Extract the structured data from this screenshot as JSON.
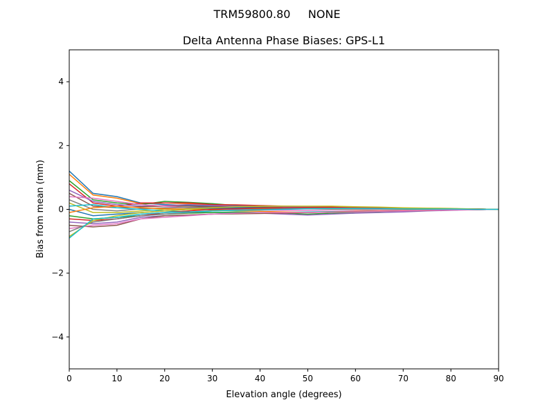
{
  "chart_data": {
    "type": "line",
    "suptitle": "TRM59800.80     NONE",
    "title": "Delta Antenna Phase Biases: GPS-L1",
    "xlabel": "Elevation angle (degrees)",
    "ylabel": "Bias from mean (mm)",
    "xlim": [
      0,
      90
    ],
    "ylim": [
      -5,
      5
    ],
    "xticks": [
      0,
      10,
      20,
      30,
      40,
      50,
      60,
      70,
      80,
      90
    ],
    "yticks": [
      -4,
      -2,
      0,
      2,
      4
    ],
    "ytick_labels": [
      "−4",
      "−2",
      "0",
      "2",
      "4"
    ],
    "grid": false,
    "colors": [
      "#1f77b4",
      "#ff7f0e",
      "#2ca02c",
      "#d62728",
      "#9467bd",
      "#8c564b",
      "#e377c2",
      "#7f7f7f",
      "#bcbd22",
      "#17becf"
    ],
    "x": [
      0,
      5,
      10,
      15,
      20,
      25,
      30,
      35,
      40,
      45,
      50,
      55,
      60,
      65,
      70,
      75,
      80,
      85,
      90
    ],
    "series": [
      {
        "values": [
          1.2,
          0.5,
          0.4,
          0.2,
          0.15,
          0.12,
          0.1,
          0.08,
          0.06,
          0.05,
          0.04,
          0.04,
          0.03,
          0.03,
          0.02,
          0.02,
          0.01,
          0.01,
          0
        ]
      },
      {
        "values": [
          1.1,
          0.45,
          0.35,
          0.18,
          0.2,
          0.18,
          0.14,
          0.1,
          0.08,
          0.07,
          0.06,
          0.05,
          0.04,
          0.03,
          0.03,
          0.02,
          0.02,
          0.01,
          0
        ]
      },
      {
        "values": [
          0.9,
          0.3,
          0.2,
          0.15,
          0.25,
          0.22,
          0.18,
          0.12,
          0.1,
          0.08,
          0.06,
          0.05,
          0.05,
          0.04,
          0.03,
          0.03,
          0.02,
          0.01,
          0
        ]
      },
      {
        "values": [
          0.8,
          0.2,
          0.1,
          0.2,
          0.2,
          0.2,
          0.15,
          0.14,
          0.12,
          0.1,
          0.09,
          0.08,
          0.06,
          0.05,
          0.04,
          0.03,
          0.02,
          0.01,
          0
        ]
      },
      {
        "values": [
          0.6,
          0.25,
          0.15,
          0.1,
          0.12,
          0.15,
          0.12,
          0.1,
          0.1,
          0.08,
          0.07,
          0.06,
          0.05,
          0.04,
          0.03,
          0.02,
          0.02,
          0.01,
          0
        ]
      },
      {
        "values": [
          0.5,
          0.1,
          0.05,
          0.08,
          0.1,
          0.1,
          0.08,
          0.07,
          0.06,
          0.05,
          0.05,
          0.04,
          0.03,
          0.03,
          0.02,
          0.02,
          0.01,
          0.01,
          0
        ]
      },
      {
        "values": [
          0.4,
          0.35,
          0.25,
          0.15,
          0.1,
          0.05,
          0.02,
          0,
          -0.02,
          -0.03,
          -0.03,
          -0.02,
          -0.02,
          -0.01,
          -0.01,
          0,
          0,
          0,
          0
        ]
      },
      {
        "values": [
          0.3,
          0.0,
          -0.05,
          0.02,
          0.05,
          0.06,
          0.06,
          0.05,
          0.05,
          0.04,
          0.03,
          0.03,
          0.02,
          0.02,
          0.01,
          0.01,
          0.01,
          0,
          0
        ]
      },
      {
        "values": [
          0.2,
          -0.1,
          -0.1,
          -0.05,
          0,
          0.02,
          0.03,
          0.03,
          0.02,
          0.02,
          0.02,
          0.01,
          0.01,
          0.01,
          0.01,
          0,
          0,
          0,
          0
        ]
      },
      {
        "values": [
          0.1,
          0.15,
          0.05,
          0,
          -0.05,
          -0.08,
          -0.1,
          -0.1,
          -0.1,
          -0.09,
          -0.08,
          -0.07,
          -0.06,
          -0.05,
          -0.04,
          -0.03,
          -0.02,
          -0.01,
          0
        ]
      },
      {
        "values": [
          0.0,
          -0.2,
          -0.15,
          -0.1,
          -0.05,
          0,
          0.03,
          0.05,
          0.05,
          0.04,
          0.04,
          0.03,
          0.03,
          0.02,
          0.02,
          0.01,
          0.01,
          0,
          0
        ]
      },
      {
        "values": [
          -0.1,
          0.05,
          0.1,
          0.05,
          0.02,
          0,
          -0.02,
          -0.04,
          -0.06,
          -0.08,
          -0.1,
          -0.08,
          -0.06,
          -0.05,
          -0.04,
          -0.03,
          -0.02,
          -0.01,
          0
        ]
      },
      {
        "values": [
          -0.2,
          -0.3,
          -0.25,
          -0.2,
          -0.15,
          -0.12,
          -0.1,
          -0.08,
          -0.1,
          -0.12,
          -0.15,
          -0.12,
          -0.1,
          -0.07,
          -0.05,
          -0.04,
          -0.02,
          -0.01,
          0
        ]
      },
      {
        "values": [
          -0.3,
          -0.35,
          -0.3,
          -0.2,
          -0.1,
          -0.05,
          0,
          0.02,
          0.04,
          0.05,
          0.06,
          0.06,
          0.05,
          0.04,
          0.03,
          0.02,
          0.02,
          0.01,
          0
        ]
      },
      {
        "values": [
          -0.4,
          -0.45,
          -0.4,
          -0.25,
          -0.2,
          -0.18,
          -0.15,
          -0.12,
          -0.12,
          -0.15,
          -0.18,
          -0.15,
          -0.12,
          -0.1,
          -0.08,
          -0.05,
          -0.03,
          -0.01,
          0
        ]
      },
      {
        "values": [
          -0.5,
          -0.55,
          -0.5,
          -0.3,
          -0.2,
          -0.18,
          -0.15,
          -0.14,
          -0.13,
          -0.12,
          -0.1,
          -0.08,
          -0.07,
          -0.06,
          -0.05,
          -0.04,
          -0.02,
          -0.01,
          0
        ]
      },
      {
        "values": [
          -0.6,
          -0.5,
          -0.45,
          -0.3,
          -0.25,
          -0.2,
          -0.15,
          -0.12,
          -0.1,
          -0.1,
          -0.1,
          -0.09,
          -0.08,
          -0.06,
          -0.05,
          -0.03,
          -0.02,
          -0.01,
          0
        ]
      },
      {
        "values": [
          -0.7,
          -0.4,
          -0.3,
          -0.2,
          -0.15,
          -0.1,
          -0.05,
          -0.02,
          0,
          0.02,
          0.03,
          0.04,
          0.04,
          0.03,
          0.03,
          0.02,
          0.01,
          0.01,
          0
        ]
      },
      {
        "values": [
          -0.85,
          -0.35,
          -0.2,
          -0.1,
          -0.05,
          0,
          0.05,
          0.08,
          0.1,
          0.1,
          0.1,
          0.1,
          0.08,
          0.07,
          0.05,
          0.04,
          0.03,
          0.01,
          0
        ]
      },
      {
        "values": [
          -0.9,
          -0.3,
          -0.25,
          -0.15,
          -0.1,
          -0.08,
          -0.05,
          -0.03,
          -0.02,
          0,
          0.02,
          0.02,
          0.02,
          0.02,
          0.01,
          0.01,
          0.01,
          0,
          0
        ]
      }
    ]
  }
}
